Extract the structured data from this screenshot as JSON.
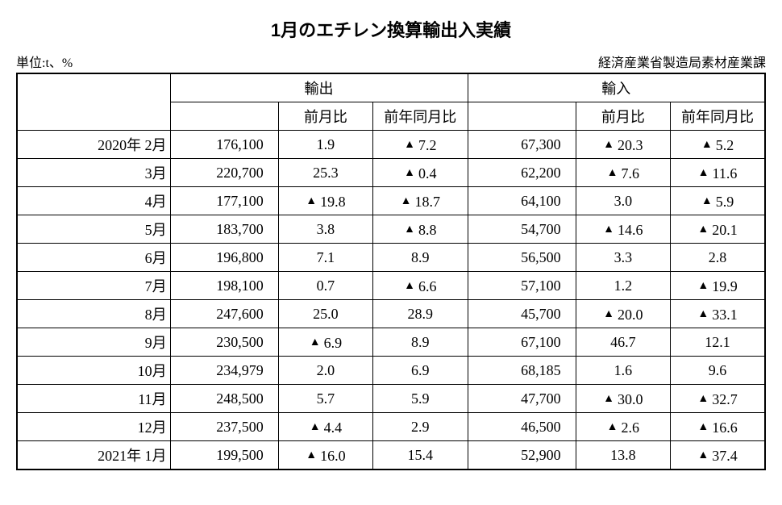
{
  "title": "1月のエチレン換算輸出入実績",
  "unit_label": "単位:t、%",
  "source_label": "経済産業省製造局素材産業課",
  "header": {
    "export": "輸出",
    "import": "輸入",
    "mom": "前月比",
    "yoy": "前年同月比"
  },
  "rows": [
    {
      "period": "2020年 2月",
      "ex_v": "176,100",
      "ex_m": "1.9",
      "ex_m_neg": false,
      "ex_y": "7.2",
      "ex_y_neg": true,
      "im_v": "67,300",
      "im_m": "20.3",
      "im_m_neg": true,
      "im_y": "5.2",
      "im_y_neg": true
    },
    {
      "period": "3月",
      "ex_v": "220,700",
      "ex_m": "25.3",
      "ex_m_neg": false,
      "ex_y": "0.4",
      "ex_y_neg": true,
      "im_v": "62,200",
      "im_m": "7.6",
      "im_m_neg": true,
      "im_y": "11.6",
      "im_y_neg": true
    },
    {
      "period": "4月",
      "ex_v": "177,100",
      "ex_m": "19.8",
      "ex_m_neg": true,
      "ex_y": "18.7",
      "ex_y_neg": true,
      "im_v": "64,100",
      "im_m": "3.0",
      "im_m_neg": false,
      "im_y": "5.9",
      "im_y_neg": true
    },
    {
      "period": "5月",
      "ex_v": "183,700",
      "ex_m": "3.8",
      "ex_m_neg": false,
      "ex_y": "8.8",
      "ex_y_neg": true,
      "im_v": "54,700",
      "im_m": "14.6",
      "im_m_neg": true,
      "im_y": "20.1",
      "im_y_neg": true
    },
    {
      "period": "6月",
      "ex_v": "196,800",
      "ex_m": "7.1",
      "ex_m_neg": false,
      "ex_y": "8.9",
      "ex_y_neg": false,
      "im_v": "56,500",
      "im_m": "3.3",
      "im_m_neg": false,
      "im_y": "2.8",
      "im_y_neg": false
    },
    {
      "period": "7月",
      "ex_v": "198,100",
      "ex_m": "0.7",
      "ex_m_neg": false,
      "ex_y": "6.6",
      "ex_y_neg": true,
      "im_v": "57,100",
      "im_m": "1.2",
      "im_m_neg": false,
      "im_y": "19.9",
      "im_y_neg": true
    },
    {
      "period": "8月",
      "ex_v": "247,600",
      "ex_m": "25.0",
      "ex_m_neg": false,
      "ex_y": "28.9",
      "ex_y_neg": false,
      "im_v": "45,700",
      "im_m": "20.0",
      "im_m_neg": true,
      "im_y": "33.1",
      "im_y_neg": true
    },
    {
      "period": "9月",
      "ex_v": "230,500",
      "ex_m": "6.9",
      "ex_m_neg": true,
      "ex_y": "8.9",
      "ex_y_neg": false,
      "im_v": "67,100",
      "im_m": "46.7",
      "im_m_neg": false,
      "im_y": "12.1",
      "im_y_neg": false
    },
    {
      "period": "10月",
      "ex_v": "234,979",
      "ex_m": "2.0",
      "ex_m_neg": false,
      "ex_y": "6.9",
      "ex_y_neg": false,
      "im_v": "68,185",
      "im_m": "1.6",
      "im_m_neg": false,
      "im_y": "9.6",
      "im_y_neg": false
    },
    {
      "period": "11月",
      "ex_v": "248,500",
      "ex_m": "5.7",
      "ex_m_neg": false,
      "ex_y": "5.9",
      "ex_y_neg": false,
      "im_v": "47,700",
      "im_m": "30.0",
      "im_m_neg": true,
      "im_y": "32.7",
      "im_y_neg": true
    },
    {
      "period": "12月",
      "ex_v": "237,500",
      "ex_m": "4.4",
      "ex_m_neg": true,
      "ex_y": "2.9",
      "ex_y_neg": false,
      "im_v": "46,500",
      "im_m": "2.6",
      "im_m_neg": true,
      "im_y": "16.6",
      "im_y_neg": true
    },
    {
      "period": "2021年 1月",
      "ex_v": "199,500",
      "ex_m": "16.0",
      "ex_m_neg": true,
      "ex_y": "15.4",
      "ex_y_neg": false,
      "im_v": "52,900",
      "im_m": "13.8",
      "im_m_neg": false,
      "im_y": "37.4",
      "im_y_neg": true
    }
  ],
  "neg_symbol": "▲"
}
